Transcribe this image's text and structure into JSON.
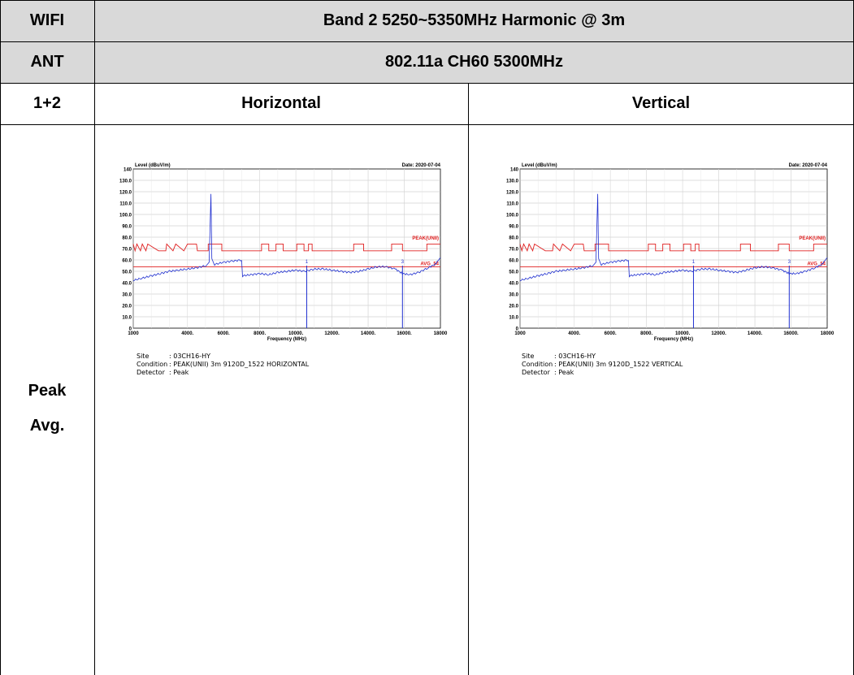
{
  "header": {
    "row1_label": "WIFI",
    "row1_value": "Band 2 5250~5350MHz Harmonic @ 3m",
    "row2_label": "ANT",
    "row2_value": "802.11a CH60 5300MHz",
    "row3_label": "1+2",
    "col_h": "Horizontal",
    "col_v": "Vertical",
    "side_peak": "Peak",
    "side_avg": "Avg."
  },
  "colors": {
    "header_bg": "#d9d9d9",
    "trace": "#1f2fd0",
    "limit": "#e02020",
    "grid": "#bdbdbd"
  },
  "chart_data": [
    {
      "type": "line",
      "title": "",
      "ylabel": "Level (dBuV/m)",
      "xlabel": "Frequency (MHz)",
      "date": "Date: 2020-07-04",
      "ylim": [
        0,
        140
      ],
      "xlim": [
        1000,
        18000
      ],
      "y_ticks": [
        "140",
        "130.0",
        "120.0",
        "110.0",
        "100.0",
        "90.0",
        "80.0",
        "70.0",
        "60.0",
        "50.0",
        "40.0",
        "30.0",
        "20.0",
        "10.0",
        "0"
      ],
      "x_ticks": [
        "1000",
        "4000.",
        "6000.",
        "8000.",
        "10000.",
        "12000.",
        "14000.",
        "16000.",
        "18000"
      ],
      "limit_peak_label": "PEAK(UNII)",
      "limit_avg_label": "AVG_54",
      "limit_avg_value": 54,
      "limit_peak": [
        [
          1000,
          74
        ],
        [
          1100,
          68
        ],
        [
          1200,
          74
        ],
        [
          1400,
          68
        ],
        [
          1500,
          74
        ],
        [
          1700,
          68
        ],
        [
          1800,
          74
        ],
        [
          2400,
          68
        ],
        [
          2800,
          68
        ],
        [
          2850,
          74
        ],
        [
          3200,
          68
        ],
        [
          3350,
          74
        ],
        [
          3800,
          68
        ],
        [
          4000,
          74
        ],
        [
          4500,
          74
        ],
        [
          4550,
          68
        ],
        [
          5150,
          68
        ],
        [
          5150,
          74
        ],
        [
          5900,
          74
        ],
        [
          5900,
          68
        ],
        [
          8100,
          68
        ],
        [
          8100,
          74
        ],
        [
          8500,
          74
        ],
        [
          8500,
          68
        ],
        [
          8900,
          68
        ],
        [
          8900,
          74
        ],
        [
          9300,
          74
        ],
        [
          9300,
          68
        ],
        [
          10050,
          68
        ],
        [
          10050,
          74
        ],
        [
          10450,
          74
        ],
        [
          10450,
          68
        ],
        [
          10700,
          68
        ],
        [
          10700,
          74
        ],
        [
          10900,
          74
        ],
        [
          10900,
          68
        ],
        [
          13200,
          68
        ],
        [
          13200,
          74
        ],
        [
          13750,
          74
        ],
        [
          13750,
          68
        ],
        [
          15300,
          68
        ],
        [
          15300,
          74
        ],
        [
          15900,
          74
        ],
        [
          15900,
          68
        ],
        [
          17250,
          68
        ],
        [
          17250,
          74
        ],
        [
          18000,
          74
        ]
      ],
      "trace": [
        [
          1000,
          42
        ],
        [
          1500,
          44
        ],
        [
          2000,
          46
        ],
        [
          2500,
          48
        ],
        [
          3000,
          50
        ],
        [
          3500,
          51
        ],
        [
          4000,
          52
        ],
        [
          4500,
          53
        ],
        [
          5000,
          55
        ],
        [
          5200,
          58
        ],
        [
          5300,
          118
        ],
        [
          5350,
          62
        ],
        [
          5500,
          56
        ],
        [
          6000,
          58
        ],
        [
          6500,
          59
        ],
        [
          7000,
          60
        ],
        [
          7050,
          46
        ],
        [
          7500,
          47
        ],
        [
          8000,
          48
        ],
        [
          8500,
          47
        ],
        [
          9000,
          49
        ],
        [
          9500,
          50
        ],
        [
          10000,
          51
        ],
        [
          10500,
          50
        ],
        [
          11000,
          52
        ],
        [
          11500,
          52
        ],
        [
          12000,
          51
        ],
        [
          12500,
          50
        ],
        [
          13000,
          49
        ],
        [
          13500,
          50
        ],
        [
          14000,
          52
        ],
        [
          14500,
          54
        ],
        [
          15000,
          54
        ],
        [
          15500,
          52
        ],
        [
          15900,
          48
        ],
        [
          16300,
          47
        ],
        [
          16800,
          49
        ],
        [
          17300,
          53
        ],
        [
          17700,
          56
        ],
        [
          18000,
          62
        ]
      ],
      "spikes": [
        {
          "x": 10600,
          "label": "1"
        },
        {
          "x": 15900,
          "label": "3"
        }
      ],
      "site_label": "Site",
      "site_value": ": 03CH16-HY",
      "cond_label": "Condition",
      "cond_value": ": PEAK(UNII) 3m 9120D_1522 HORIZONTAL",
      "det_label": "Detector",
      "det_value": ": Peak"
    },
    {
      "type": "line",
      "title": "",
      "ylabel": "Level (dBuV/m)",
      "xlabel": "Frequency (MHz)",
      "date": "Date: 2020-07-04",
      "ylim": [
        0,
        140
      ],
      "xlim": [
        1000,
        18000
      ],
      "y_ticks": [
        "140",
        "130.0",
        "120.0",
        "110.0",
        "100.0",
        "90.0",
        "80.0",
        "70.0",
        "60.0",
        "50.0",
        "40.0",
        "30.0",
        "20.0",
        "10.0",
        "0"
      ],
      "x_ticks": [
        "1000",
        "4000.",
        "6000.",
        "8000.",
        "10000.",
        "12000.",
        "14000.",
        "16000.",
        "18000"
      ],
      "limit_peak_label": "PEAK(UNII)",
      "limit_avg_label": "AVG_54",
      "limit_avg_value": 54,
      "limit_peak": [
        [
          1000,
          74
        ],
        [
          1100,
          68
        ],
        [
          1200,
          74
        ],
        [
          1400,
          68
        ],
        [
          1500,
          74
        ],
        [
          1700,
          68
        ],
        [
          1800,
          74
        ],
        [
          2400,
          68
        ],
        [
          2800,
          68
        ],
        [
          2850,
          74
        ],
        [
          3200,
          68
        ],
        [
          3350,
          74
        ],
        [
          3800,
          68
        ],
        [
          4000,
          74
        ],
        [
          4500,
          74
        ],
        [
          4550,
          68
        ],
        [
          5150,
          68
        ],
        [
          5150,
          74
        ],
        [
          5900,
          74
        ],
        [
          5900,
          68
        ],
        [
          8100,
          68
        ],
        [
          8100,
          74
        ],
        [
          8500,
          74
        ],
        [
          8500,
          68
        ],
        [
          8900,
          68
        ],
        [
          8900,
          74
        ],
        [
          9300,
          74
        ],
        [
          9300,
          68
        ],
        [
          10050,
          68
        ],
        [
          10050,
          74
        ],
        [
          10450,
          74
        ],
        [
          10450,
          68
        ],
        [
          10700,
          68
        ],
        [
          10700,
          74
        ],
        [
          10900,
          74
        ],
        [
          10900,
          68
        ],
        [
          13200,
          68
        ],
        [
          13200,
          74
        ],
        [
          13750,
          74
        ],
        [
          13750,
          68
        ],
        [
          15300,
          68
        ],
        [
          15300,
          74
        ],
        [
          15900,
          74
        ],
        [
          15900,
          68
        ],
        [
          17250,
          68
        ],
        [
          17250,
          74
        ],
        [
          18000,
          74
        ]
      ],
      "trace": [
        [
          1000,
          42
        ],
        [
          1500,
          44
        ],
        [
          2000,
          46
        ],
        [
          2500,
          48
        ],
        [
          3000,
          50
        ],
        [
          3500,
          51
        ],
        [
          4000,
          52
        ],
        [
          4500,
          53
        ],
        [
          5000,
          55
        ],
        [
          5200,
          58
        ],
        [
          5300,
          118
        ],
        [
          5350,
          62
        ],
        [
          5500,
          56
        ],
        [
          6000,
          58
        ],
        [
          6500,
          59
        ],
        [
          7000,
          60
        ],
        [
          7050,
          46
        ],
        [
          7500,
          47
        ],
        [
          8000,
          48
        ],
        [
          8500,
          47
        ],
        [
          9000,
          49
        ],
        [
          9500,
          50
        ],
        [
          10000,
          51
        ],
        [
          10500,
          50
        ],
        [
          11000,
          52
        ],
        [
          11500,
          52
        ],
        [
          12000,
          51
        ],
        [
          12500,
          50
        ],
        [
          13000,
          49
        ],
        [
          13500,
          51
        ],
        [
          14000,
          53
        ],
        [
          14500,
          54
        ],
        [
          15000,
          53
        ],
        [
          15500,
          51
        ],
        [
          15900,
          48
        ],
        [
          16300,
          48
        ],
        [
          16800,
          50
        ],
        [
          17300,
          53
        ],
        [
          17700,
          56
        ],
        [
          18000,
          62
        ]
      ],
      "spikes": [
        {
          "x": 10600,
          "label": "1"
        },
        {
          "x": 15900,
          "label": "3"
        }
      ],
      "site_label": "Site",
      "site_value": ": 03CH16-HY",
      "cond_label": "Condition",
      "cond_value": ": PEAK(UNII) 3m 9120D_1522 VERTICAL",
      "det_label": "Detector",
      "det_value": ": Peak"
    }
  ]
}
